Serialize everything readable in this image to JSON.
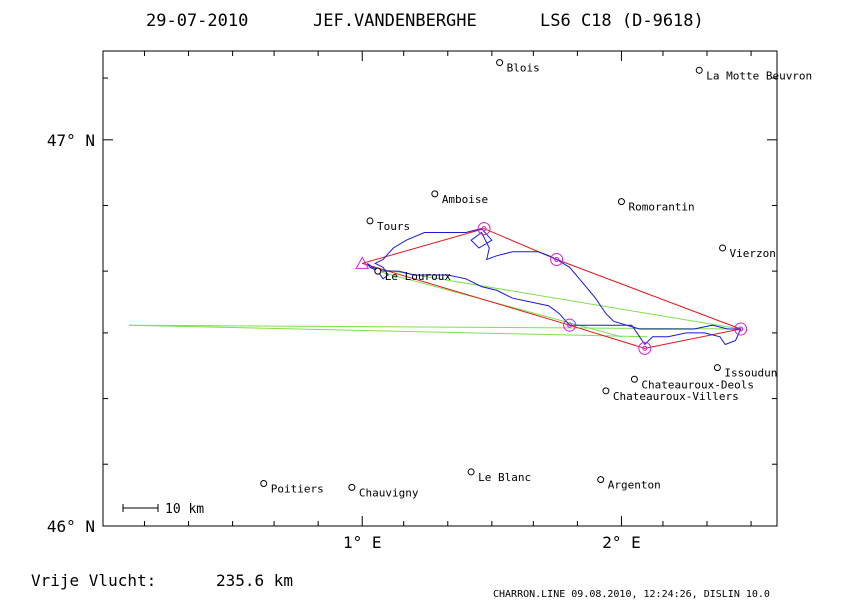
{
  "header": {
    "date": "29-07-2010",
    "pilot": "JEF.VANDENBERGHE",
    "glider": "LS6 C18 (D-9618)"
  },
  "footer": {
    "distance_label": "Vrije Vlucht:",
    "distance_value": "235.6 km",
    "program_info": "CHARRON.LINE 09.08.2010, 12:24:26, DISLIN 10.0"
  },
  "axes": {
    "lon_min": 0.0,
    "lon_max": 2.6,
    "lat_min": 46.0,
    "lat_max": 47.23,
    "lat_labels": [
      {
        "value": 47.0,
        "text": "47° N"
      },
      {
        "value": 46.0,
        "text": "46° N"
      }
    ],
    "lon_labels": [
      {
        "value": 1.0,
        "text": "1° E"
      },
      {
        "value": 2.0,
        "text": "2° E"
      }
    ],
    "minor_lat_ticks": [
      46.16,
      46.33,
      46.5,
      46.66,
      46.83,
      47.16
    ],
    "minor_lon_ticks": [
      0.16,
      0.33,
      0.5,
      0.66,
      0.83,
      1.16,
      1.33,
      1.5,
      1.66,
      1.83,
      2.16,
      2.33,
      2.5
    ]
  },
  "scale_bar": {
    "label": "10 km"
  },
  "towns": [
    {
      "name": "Blois",
      "lon": 1.53,
      "lat": 47.2
    },
    {
      "name": "La Motte Beuvron",
      "lon": 2.3,
      "lat": 47.18
    },
    {
      "name": "Amboise",
      "lon": 1.28,
      "lat": 46.86
    },
    {
      "name": "Romorantin",
      "lon": 2.0,
      "lat": 46.84
    },
    {
      "name": "Tours",
      "lon": 1.03,
      "lat": 46.79
    },
    {
      "name": "Vierzon",
      "lon": 2.39,
      "lat": 46.72
    },
    {
      "name": "Le Louroux",
      "lon": 1.06,
      "lat": 46.66
    },
    {
      "name": "Issoudun",
      "lon": 2.37,
      "lat": 46.41
    },
    {
      "name": "Chateauroux-Deols",
      "lon": 2.05,
      "lat": 46.38
    },
    {
      "name": "Chateauroux-Villers",
      "lon": 1.94,
      "lat": 46.35
    },
    {
      "name": "Le Blanc",
      "lon": 1.42,
      "lat": 46.14
    },
    {
      "name": "Argenton",
      "lon": 1.92,
      "lat": 46.12
    },
    {
      "name": "Poitiers",
      "lon": 0.62,
      "lat": 46.11
    },
    {
      "name": "Chauvigny",
      "lon": 0.96,
      "lat": 46.1
    }
  ],
  "start_point": {
    "lon": 1.0,
    "lat": 46.68
  },
  "turnpoints": [
    {
      "lon": 1.47,
      "lat": 46.77
    },
    {
      "lon": 1.75,
      "lat": 46.69
    },
    {
      "lon": 2.46,
      "lat": 46.51
    },
    {
      "lon": 2.09,
      "lat": 46.46
    },
    {
      "lon": 1.8,
      "lat": 46.52
    }
  ],
  "optimized_route": [
    [
      1.0,
      46.68
    ],
    [
      1.47,
      46.77
    ],
    [
      1.75,
      46.69
    ],
    [
      2.46,
      46.51
    ],
    [
      2.09,
      46.46
    ],
    [
      1.8,
      46.52
    ],
    [
      1.0,
      46.68
    ]
  ],
  "green_lines": [
    [
      [
        1.03,
        46.67
      ],
      [
        2.46,
        46.51
      ]
    ],
    [
      [
        1.06,
        46.66
      ],
      [
        2.0,
        46.49
      ]
    ],
    [
      [
        0.1,
        46.52
      ],
      [
        2.46,
        46.51
      ]
    ],
    [
      [
        0.1,
        46.52
      ],
      [
        2.1,
        46.49
      ]
    ]
  ],
  "flight_track": [
    [
      1.02,
      46.68
    ],
    [
      1.03,
      46.67
    ],
    [
      1.06,
      46.66
    ],
    [
      1.08,
      46.64
    ],
    [
      1.1,
      46.65
    ],
    [
      1.08,
      46.67
    ],
    [
      1.05,
      46.68
    ],
    [
      1.08,
      46.69
    ],
    [
      1.12,
      46.72
    ],
    [
      1.17,
      46.74
    ],
    [
      1.24,
      46.76
    ],
    [
      1.32,
      46.76
    ],
    [
      1.4,
      46.76
    ],
    [
      1.46,
      46.77
    ],
    [
      1.5,
      46.74
    ],
    [
      1.45,
      46.72
    ],
    [
      1.42,
      46.74
    ],
    [
      1.46,
      46.76
    ],
    [
      1.49,
      46.72
    ],
    [
      1.48,
      46.69
    ],
    [
      1.52,
      46.7
    ],
    [
      1.58,
      46.71
    ],
    [
      1.63,
      46.71
    ],
    [
      1.68,
      46.71
    ],
    [
      1.72,
      46.7
    ],
    [
      1.75,
      46.69
    ],
    [
      1.8,
      46.67
    ],
    [
      1.85,
      46.63
    ],
    [
      1.9,
      46.59
    ],
    [
      1.94,
      46.55
    ],
    [
      1.97,
      46.53
    ],
    [
      2.02,
      46.52
    ],
    [
      2.07,
      46.51
    ],
    [
      2.13,
      46.51
    ],
    [
      2.2,
      46.51
    ],
    [
      2.28,
      46.51
    ],
    [
      2.35,
      46.52
    ],
    [
      2.41,
      46.51
    ],
    [
      2.46,
      46.51
    ],
    [
      2.44,
      46.48
    ],
    [
      2.4,
      46.47
    ],
    [
      2.38,
      46.49
    ],
    [
      2.32,
      46.5
    ],
    [
      2.25,
      46.5
    ],
    [
      2.18,
      46.49
    ],
    [
      2.12,
      46.49
    ],
    [
      2.09,
      46.47
    ],
    [
      2.07,
      46.49
    ],
    [
      2.04,
      46.52
    ],
    [
      1.98,
      46.52
    ],
    [
      1.92,
      46.52
    ],
    [
      1.86,
      46.52
    ],
    [
      1.8,
      46.52
    ],
    [
      1.76,
      46.55
    ],
    [
      1.72,
      46.57
    ],
    [
      1.65,
      46.58
    ],
    [
      1.58,
      46.59
    ],
    [
      1.52,
      46.61
    ],
    [
      1.46,
      46.62
    ],
    [
      1.4,
      46.64
    ],
    [
      1.33,
      46.65
    ],
    [
      1.27,
      46.65
    ],
    [
      1.2,
      46.65
    ],
    [
      1.14,
      46.66
    ],
    [
      1.08,
      46.66
    ],
    [
      1.04,
      46.67
    ],
    [
      1.02,
      46.68
    ]
  ],
  "colors": {
    "track": "#1a1ad8",
    "route": "#e01818",
    "green": "#7ee04a",
    "turnpoint": "#d020d0",
    "frame": "#000000"
  }
}
